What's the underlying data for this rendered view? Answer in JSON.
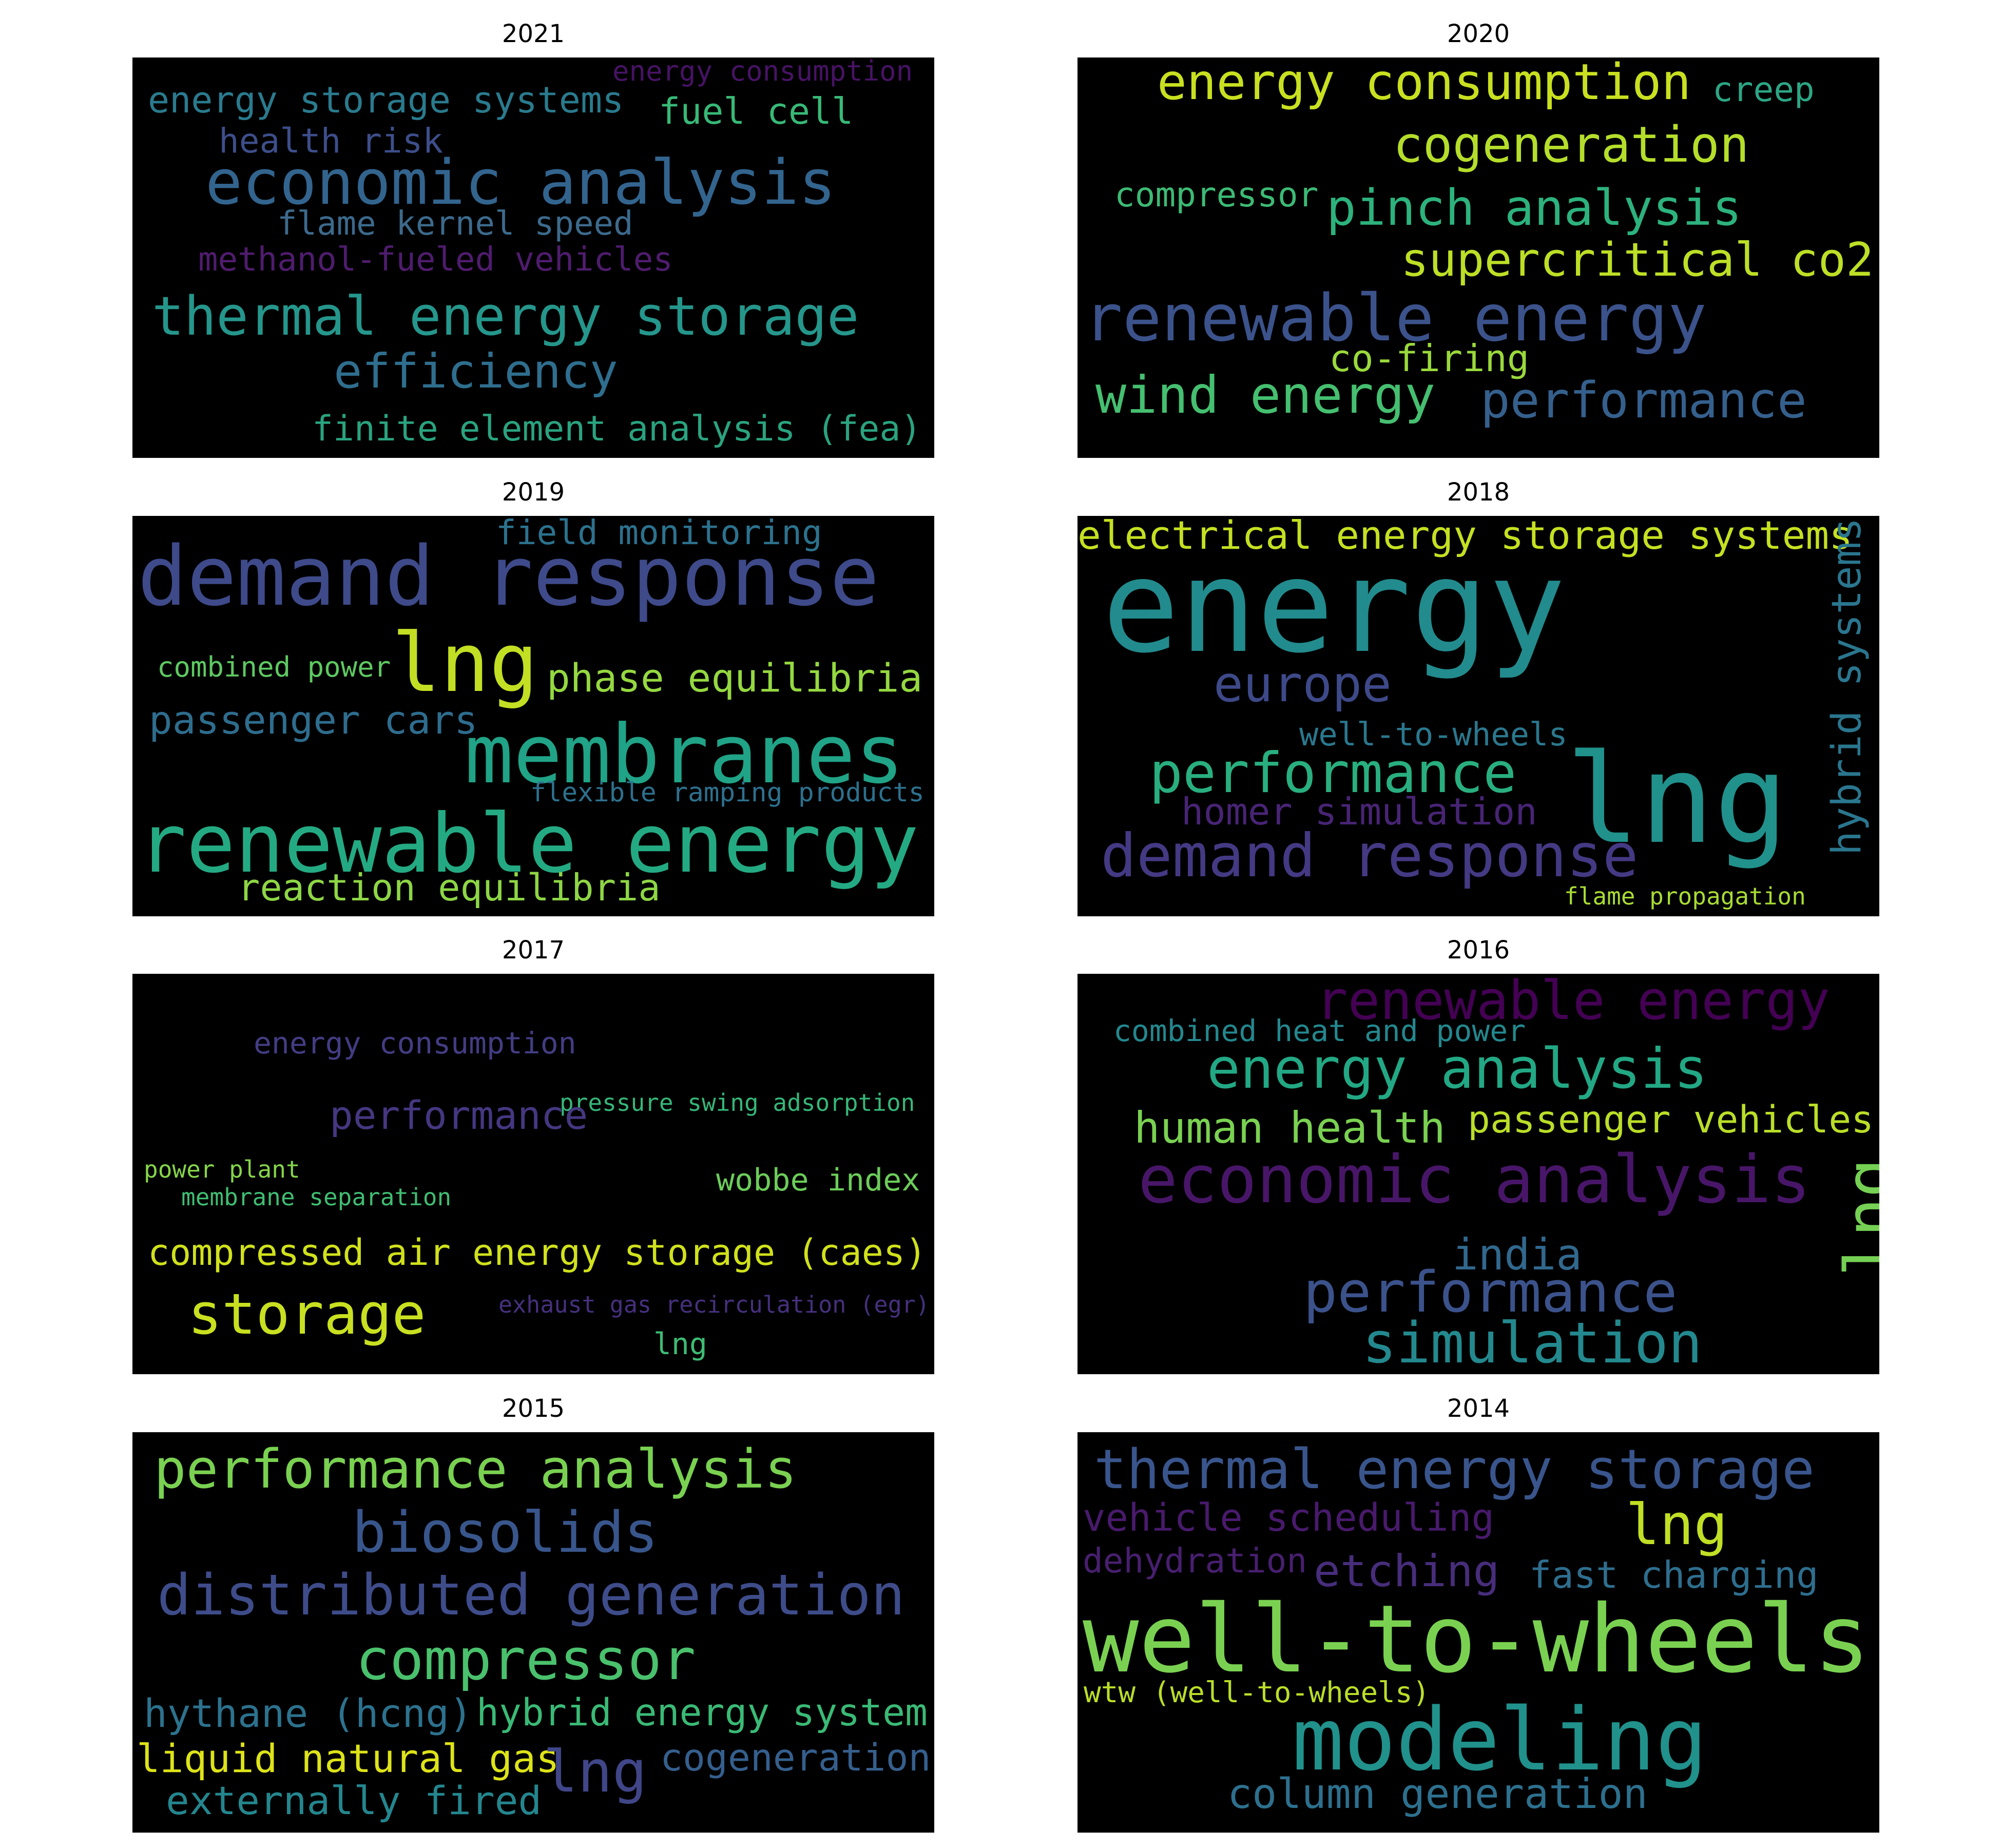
{
  "panels": [
    {
      "title": "2021",
      "words": [
        {
          "text": "energy consumption",
          "color": "#471365"
        },
        {
          "text": "energy storage systems",
          "color": "#2a7b8e"
        },
        {
          "text": "fuel cell",
          "color": "#38b977"
        },
        {
          "text": "health risk",
          "color": "#3d4e8a"
        },
        {
          "text": "economic analysis",
          "color": "#32648e"
        },
        {
          "text": "flame kernel speed",
          "color": "#3c6a8c"
        },
        {
          "text": "methanol-fueled vehicles",
          "color": "#4f1c6e"
        },
        {
          "text": "thermal energy storage",
          "color": "#25968b"
        },
        {
          "text": "efficiency",
          "color": "#2f6e8e"
        },
        {
          "text": "finite element analysis (fea)",
          "color": "#2aa37f"
        }
      ]
    },
    {
      "title": "2020",
      "words": [
        {
          "text": "energy consumption",
          "color": "#c8e020"
        },
        {
          "text": "creep",
          "color": "#2ca685"
        },
        {
          "text": "cogeneration",
          "color": "#b5de2b"
        },
        {
          "text": "compressor",
          "color": "#3cbb75"
        },
        {
          "text": "pinch analysis",
          "color": "#2db27d"
        },
        {
          "text": "supercritical co2",
          "color": "#bddf26"
        },
        {
          "text": "renewable energy",
          "color": "#3b528b"
        },
        {
          "text": "co-firing",
          "color": "#9ad93c"
        },
        {
          "text": "wind energy",
          "color": "#45bf70"
        },
        {
          "text": "performance",
          "color": "#35608d"
        }
      ]
    },
    {
      "title": "2019",
      "words": [
        {
          "text": "field monitoring",
          "color": "#2c728e"
        },
        {
          "text": "demand response",
          "color": "#3e4a89"
        },
        {
          "text": "lng",
          "color": "#c2df23"
        },
        {
          "text": "combined power",
          "color": "#5ec962"
        },
        {
          "text": "phase equilibria",
          "color": "#95d840"
        },
        {
          "text": "passenger cars",
          "color": "#2e6d8e"
        },
        {
          "text": "membranes",
          "color": "#20a386"
        },
        {
          "text": "flexible ramping products",
          "color": "#2d718e"
        },
        {
          "text": "renewable energy",
          "color": "#24aa83"
        },
        {
          "text": "reaction equilibria",
          "color": "#8ed645"
        }
      ]
    },
    {
      "title": "2018",
      "words": [
        {
          "text": "electrical energy storage systems",
          "color": "#c5e021"
        },
        {
          "text": "energy",
          "color": "#228b8d"
        },
        {
          "text": "hybrid systems",
          "color": "#2a768e"
        },
        {
          "text": "europe",
          "color": "#3e4989"
        },
        {
          "text": "well-to-wheels",
          "color": "#2a788e"
        },
        {
          "text": "performance",
          "color": "#29af7f"
        },
        {
          "text": "lng",
          "color": "#21918c"
        },
        {
          "text": "homer simulation",
          "color": "#482475"
        },
        {
          "text": "demand response",
          "color": "#443983"
        },
        {
          "text": "flame propagation",
          "color": "#a8db34"
        }
      ]
    },
    {
      "title": "2017",
      "words": [
        {
          "text": "energy consumption",
          "color": "#433d84"
        },
        {
          "text": "pressure swing adsorption",
          "color": "#35b779"
        },
        {
          "text": "performance",
          "color": "#453781"
        },
        {
          "text": "power plant",
          "color": "#86d549"
        },
        {
          "text": "membrane separation",
          "color": "#40bd72"
        },
        {
          "text": "wobbe index",
          "color": "#6ccd5a"
        },
        {
          "text": "compressed air energy storage (caes)",
          "color": "#d0e11c"
        },
        {
          "text": "storage",
          "color": "#c8e020"
        },
        {
          "text": "exhaust gas recirculation (egr)",
          "color": "#46307e"
        },
        {
          "text": "lng",
          "color": "#3dbc74"
        }
      ]
    },
    {
      "title": "2016",
      "words": [
        {
          "text": "renewable energy",
          "color": "#440154"
        },
        {
          "text": "combined heat and power",
          "color": "#23888e"
        },
        {
          "text": "energy analysis",
          "color": "#22a884"
        },
        {
          "text": "human health",
          "color": "#7ad151"
        },
        {
          "text": "passenger vehicles",
          "color": "#bade28"
        },
        {
          "text": "economic analysis",
          "color": "#481668"
        },
        {
          "text": "india",
          "color": "#31688e"
        },
        {
          "text": "lng",
          "color": "#75d054"
        },
        {
          "text": "performance",
          "color": "#3b528b"
        },
        {
          "text": "simulation",
          "color": "#23898e"
        }
      ]
    },
    {
      "title": "2015",
      "words": [
        {
          "text": "performance analysis",
          "color": "#7ad151"
        },
        {
          "text": "biosolids",
          "color": "#39568c"
        },
        {
          "text": "distributed generation",
          "color": "#3e4c8a"
        },
        {
          "text": "compressor",
          "color": "#4ac16d"
        },
        {
          "text": "hythane (hcng)",
          "color": "#2c728e"
        },
        {
          "text": "hybrid energy system",
          "color": "#3aba76"
        },
        {
          "text": "liquid natural gas",
          "color": "#dde318"
        },
        {
          "text": "lng",
          "color": "#404688"
        },
        {
          "text": "cogeneration",
          "color": "#355f8d"
        },
        {
          "text": "externally fired",
          "color": "#24868e"
        }
      ]
    },
    {
      "title": "2014",
      "words": [
        {
          "text": "thermal energy storage",
          "color": "#39558c"
        },
        {
          "text": "vehicle scheduling",
          "color": "#481a6c"
        },
        {
          "text": "lng",
          "color": "#c0df25"
        },
        {
          "text": "dehydration",
          "color": "#481f70"
        },
        {
          "text": "etching",
          "color": "#472d7b"
        },
        {
          "text": "fast charging",
          "color": "#2e6e8e"
        },
        {
          "text": "well-to-wheels",
          "color": "#7ad151"
        },
        {
          "text": "wtw (well-to-wheels)",
          "color": "#bade28"
        },
        {
          "text": "modeling",
          "color": "#21918c"
        },
        {
          "text": "column generation",
          "color": "#2d708e"
        }
      ]
    }
  ]
}
